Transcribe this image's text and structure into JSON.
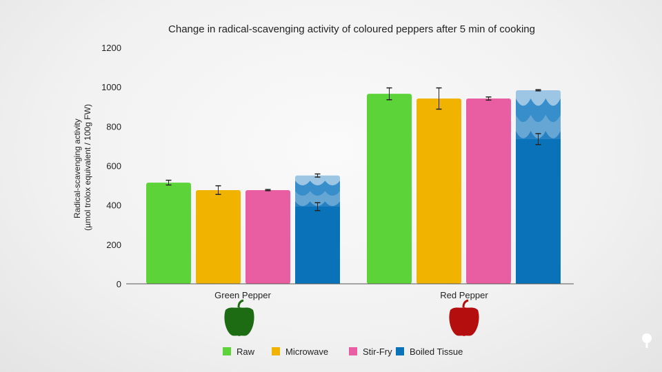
{
  "chart_data": {
    "type": "bar",
    "title": "Change in radical-scavenging activity of coloured peppers after 5 min of cooking",
    "ylabel": [
      "Radical-scavenging activity",
      "(µmol trolox equivalent / 100g FW)"
    ],
    "xlabel": "",
    "ylim": [
      0,
      1200
    ],
    "yticks": [
      0,
      200,
      400,
      600,
      800,
      1000,
      1200
    ],
    "grid": false,
    "legend_position": "bottom",
    "categories": [
      "Green Pepper",
      "Red Pepper"
    ],
    "series": [
      {
        "name": "Raw",
        "color": "#5dd33a",
        "values": [
          514,
          965
        ],
        "errors": [
          12,
          30
        ]
      },
      {
        "name": "Microwave",
        "color": "#f0b400",
        "values": [
          476,
          941
        ],
        "errors": [
          22,
          54
        ]
      },
      {
        "name": "Stir-Fry",
        "color": "#e95ea2",
        "values": [
          476,
          941
        ],
        "errors": [
          3,
          8
        ]
      },
      {
        "name": "Boiled Tissue",
        "color": "#0a72b8",
        "values": [
          392,
          735
        ],
        "errors": [
          20,
          28
        ],
        "with_water_total": [
          550,
          983
        ],
        "with_water_errors": [
          8,
          3
        ]
      }
    ],
    "category_icons": [
      "green-pepper-icon",
      "red-pepper-icon"
    ],
    "category_icon_colors": [
      "#1d6b12",
      "#b50e0e"
    ]
  },
  "logo": "brain-tree-icon"
}
